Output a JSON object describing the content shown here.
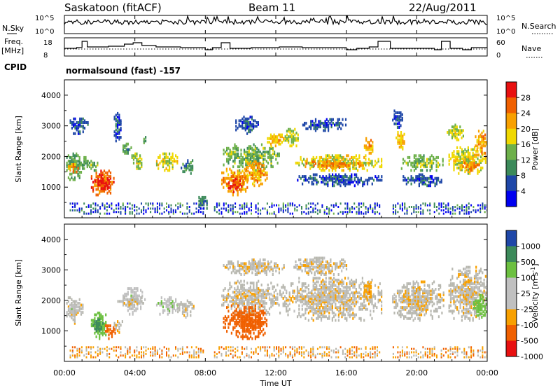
{
  "header": {
    "station": "Saskatoon (fitACF)",
    "beam": "Beam 11",
    "date": "22/Aug/2011"
  },
  "panel_labels": {
    "nsky": "N.Sky",
    "nsky_ticks": [
      "10^5",
      "10^0"
    ],
    "nsearch": "N.Search",
    "nsearch_ticks": [
      "10^5",
      "10^0"
    ],
    "freq_line1": "Freq.",
    "freq_line2": "[MHz]",
    "freq_ticks": [
      "18",
      "8"
    ],
    "nave": "Nave",
    "nave_ticks": [
      "60",
      "0"
    ],
    "cpid": "CPID",
    "cpid_value": "normalsound (fast) -157"
  },
  "colors": {
    "power_scale": [
      "#0000f0",
      "#1f47a8",
      "#3c8a5a",
      "#6db04a",
      "#f0d800",
      "#f8a000",
      "#f06000",
      "#e81010"
    ],
    "velocity_scale": [
      "#e81010",
      "#f06000",
      "#f8a000",
      "#c0c0c0",
      "#c0c0c0",
      "#6cc040",
      "#3c8a5a",
      "#1f47a8"
    ],
    "ground_scatter": "#b8b8b0"
  },
  "chart_data": [
    {
      "type": "line",
      "name": "nsky-nsearch",
      "ylabel_left": "N.Sky",
      "ylabel_right": "N.Search",
      "y_scale": "log",
      "ylim": [
        1,
        100000
      ],
      "x_range_hours": [
        0,
        24
      ],
      "description_level": "N.Sky trace near 10^4-10^5 throughout the day"
    },
    {
      "type": "line",
      "name": "freq-nave",
      "ylabel_left": "Freq. [MHz]",
      "ylabel_right": "Nave",
      "left_ylim": [
        8,
        18
      ],
      "right_ylim": [
        0,
        60
      ],
      "freq_steps": [
        {
          "t": 0.0,
          "f": 12
        },
        {
          "t": 0.7,
          "f": 12.6
        },
        {
          "t": 1.0,
          "f": 17
        },
        {
          "t": 1.3,
          "f": 13
        },
        {
          "t": 2.5,
          "f": 13.5
        },
        {
          "t": 3.4,
          "f": 15
        },
        {
          "t": 3.9,
          "f": 16
        },
        {
          "t": 4.4,
          "f": 14
        },
        {
          "t": 5.2,
          "f": 13
        },
        {
          "t": 6.6,
          "f": 12.5
        },
        {
          "t": 8.0,
          "f": 11
        },
        {
          "t": 8.4,
          "f": 12.5
        },
        {
          "t": 8.9,
          "f": 16
        },
        {
          "t": 9.4,
          "f": 12
        },
        {
          "t": 10.6,
          "f": 12.5
        },
        {
          "t": 12.2,
          "f": 13
        },
        {
          "t": 13.5,
          "f": 12.5
        },
        {
          "t": 16.0,
          "f": 11
        },
        {
          "t": 16.6,
          "f": 12
        },
        {
          "t": 17.3,
          "f": 13
        },
        {
          "t": 17.8,
          "f": 17
        },
        {
          "t": 18.5,
          "f": 12
        },
        {
          "t": 21.0,
          "f": 11
        },
        {
          "t": 21.4,
          "f": 17
        },
        {
          "t": 21.9,
          "f": 12
        },
        {
          "t": 22.6,
          "f": 11
        },
        {
          "t": 23.1,
          "f": 12.5
        },
        {
          "t": 24.0,
          "f": 12.5
        }
      ]
    },
    {
      "type": "heatmap",
      "name": "power",
      "ylabel": "Slant Range [km]",
      "ylim": [
        0,
        4500
      ],
      "yticks": [
        "1000",
        "2000",
        "3000",
        "4000"
      ],
      "colorbar_label": "Power [dB]",
      "colorbar_ticks": [
        "28",
        "24",
        "20",
        "16",
        "12",
        "8",
        "4"
      ],
      "scale_range": [
        0,
        32
      ],
      "blobs": [
        {
          "t0": 0.1,
          "t1": 1.0,
          "r0": 1200,
          "r1": 2100,
          "v": 12
        },
        {
          "t0": 0.2,
          "t1": 0.8,
          "r0": 1450,
          "r1": 1750,
          "v": 22
        },
        {
          "t0": 0.3,
          "t1": 1.3,
          "r0": 2700,
          "r1": 3200,
          "v": 6
        },
        {
          "t0": 0.9,
          "t1": 1.3,
          "r0": 1500,
          "r1": 2000,
          "v": 12
        },
        {
          "t0": 1.5,
          "t1": 2.8,
          "r0": 700,
          "r1": 1500,
          "v": 26
        },
        {
          "t0": 1.7,
          "t1": 2.5,
          "r0": 850,
          "r1": 1300,
          "v": 30
        },
        {
          "t0": 1.3,
          "t1": 1.9,
          "r0": 1500,
          "r1": 1900,
          "v": 14
        },
        {
          "t0": 2.8,
          "t1": 3.2,
          "r0": 2400,
          "r1": 3500,
          "v": 6
        },
        {
          "t0": 3.3,
          "t1": 3.8,
          "r0": 2000,
          "r1": 2400,
          "v": 12
        },
        {
          "t0": 3.8,
          "t1": 4.4,
          "r0": 1500,
          "r1": 2100,
          "v": 16
        },
        {
          "t0": 4.3,
          "t1": 4.7,
          "r0": 2400,
          "r1": 2600,
          "v": 12
        },
        {
          "t0": 5.2,
          "t1": 6.4,
          "r0": 1500,
          "r1": 2100,
          "v": 18
        },
        {
          "t0": 6.6,
          "t1": 7.3,
          "r0": 1400,
          "r1": 1900,
          "v": 10
        },
        {
          "t0": 7.6,
          "t1": 8.1,
          "r0": 200,
          "r1": 700,
          "v": 8
        },
        {
          "t0": 8.9,
          "t1": 10.4,
          "r0": 700,
          "r1": 1600,
          "v": 22
        },
        {
          "t0": 9.3,
          "t1": 10.2,
          "r0": 800,
          "r1": 1300,
          "v": 28
        },
        {
          "t0": 9.0,
          "t1": 12.2,
          "r0": 1500,
          "r1": 2400,
          "v": 14
        },
        {
          "t0": 10.2,
          "t1": 11.5,
          "r0": 1000,
          "r1": 1800,
          "v": 22
        },
        {
          "t0": 9.7,
          "t1": 11.0,
          "r0": 2700,
          "r1": 3300,
          "v": 6
        },
        {
          "t0": 11.5,
          "t1": 12.5,
          "r0": 2300,
          "r1": 2700,
          "v": 20
        },
        {
          "t0": 12.5,
          "t1": 13.3,
          "r0": 2300,
          "r1": 2900,
          "v": 16
        },
        {
          "t0": 13.1,
          "t1": 18.0,
          "r0": 1500,
          "r1": 2000,
          "v": 18
        },
        {
          "t0": 13.5,
          "t1": 17.0,
          "r0": 1600,
          "r1": 1800,
          "v": 24
        },
        {
          "t0": 13.2,
          "t1": 18.0,
          "r0": 1000,
          "r1": 1400,
          "v": 6
        },
        {
          "t0": 13.5,
          "t1": 16.0,
          "r0": 2800,
          "r1": 3200,
          "v": 6
        },
        {
          "t0": 17.0,
          "t1": 17.5,
          "r0": 2000,
          "r1": 2600,
          "v": 22
        },
        {
          "t0": 18.8,
          "t1": 19.3,
          "r0": 2200,
          "r1": 2800,
          "v": 20
        },
        {
          "t0": 18.6,
          "t1": 19.2,
          "r0": 2900,
          "r1": 3500,
          "v": 6
        },
        {
          "t0": 19.1,
          "t1": 21.5,
          "r0": 1500,
          "r1": 2000,
          "v": 14
        },
        {
          "t0": 19.2,
          "t1": 21.4,
          "r0": 1000,
          "r1": 1400,
          "v": 6
        },
        {
          "t0": 21.8,
          "t1": 23.9,
          "r0": 1400,
          "r1": 2300,
          "v": 18
        },
        {
          "t0": 22.5,
          "t1": 23.5,
          "r0": 1500,
          "r1": 1800,
          "v": 24
        },
        {
          "t0": 23.3,
          "t1": 24.0,
          "r0": 2000,
          "r1": 2800,
          "v": 22
        },
        {
          "t0": 21.7,
          "t1": 22.6,
          "r0": 2500,
          "r1": 3000,
          "v": 16
        }
      ],
      "near_range_band": {
        "r0": 100,
        "r1": 450,
        "v": 6
      }
    },
    {
      "type": "heatmap",
      "name": "velocity",
      "ylabel": "Slant Range [km]",
      "ylim": [
        0,
        4500
      ],
      "yticks": [
        "1000",
        "2000",
        "3000",
        "4000"
      ],
      "colorbar_label": "Velocity [m s^-1]",
      "colorbar_ticks": [
        "1000",
        "500",
        "100",
        "25",
        "-25",
        "-100",
        "-500",
        "-1000"
      ],
      "blobs": [
        {
          "t0": 0.1,
          "t1": 1.0,
          "r0": 1200,
          "r1": 2100,
          "v": 0
        },
        {
          "t0": 0.2,
          "t1": 0.8,
          "r0": 1500,
          "r1": 1800,
          "v": 60
        },
        {
          "t0": 1.5,
          "t1": 2.4,
          "r0": 700,
          "r1": 1600,
          "v": 300
        },
        {
          "t0": 1.6,
          "t1": 2.2,
          "r0": 900,
          "r1": 1400,
          "v": 700
        },
        {
          "t0": 2.3,
          "t1": 2.9,
          "r0": 700,
          "r1": 1200,
          "v": -150
        },
        {
          "t0": 2.8,
          "t1": 3.3,
          "r0": 900,
          "r1": 1300,
          "v": 0
        },
        {
          "t0": 3.3,
          "t1": 4.4,
          "r0": 1500,
          "r1": 2400,
          "v": 60
        },
        {
          "t0": 3.0,
          "t1": 4.7,
          "r0": 1800,
          "r1": 2100,
          "v": 0
        },
        {
          "t0": 5.2,
          "t1": 6.4,
          "r0": 1500,
          "r1": 2100,
          "v": 80
        },
        {
          "t0": 6.4,
          "t1": 7.3,
          "r0": 1400,
          "r1": 2000,
          "v": 0
        },
        {
          "t0": 8.9,
          "t1": 12.2,
          "r0": 1500,
          "r1": 2600,
          "v": 0
        },
        {
          "t0": 9.0,
          "t1": 11.5,
          "r0": 700,
          "r1": 1800,
          "v": -200
        },
        {
          "t0": 10.0,
          "t1": 11.5,
          "r0": 1000,
          "r1": 1600,
          "v": -350
        },
        {
          "t0": 9.0,
          "t1": 12.5,
          "r0": 2800,
          "r1": 3300,
          "v": 0
        },
        {
          "t0": 12.2,
          "t1": 18.0,
          "r0": 1300,
          "r1": 2700,
          "v": 0
        },
        {
          "t0": 13.0,
          "t1": 16.0,
          "r0": 2800,
          "r1": 3400,
          "v": 0
        },
        {
          "t0": 17.0,
          "t1": 17.5,
          "r0": 2000,
          "r1": 2600,
          "v": -60
        },
        {
          "t0": 18.6,
          "t1": 21.5,
          "r0": 1300,
          "r1": 2600,
          "v": 0
        },
        {
          "t0": 21.8,
          "t1": 24.0,
          "r0": 1300,
          "r1": 3100,
          "v": 0
        },
        {
          "t0": 23.2,
          "t1": 24.0,
          "r0": 1400,
          "r1": 2200,
          "v": 200
        }
      ],
      "near_range_band": {
        "r0": 100,
        "r1": 450,
        "v": -60
      }
    }
  ],
  "x_axis": {
    "label": "Time UT",
    "ticks": [
      "00:00",
      "04:00",
      "08:00",
      "12:00",
      "16:00",
      "20:00",
      "00:00"
    ]
  }
}
